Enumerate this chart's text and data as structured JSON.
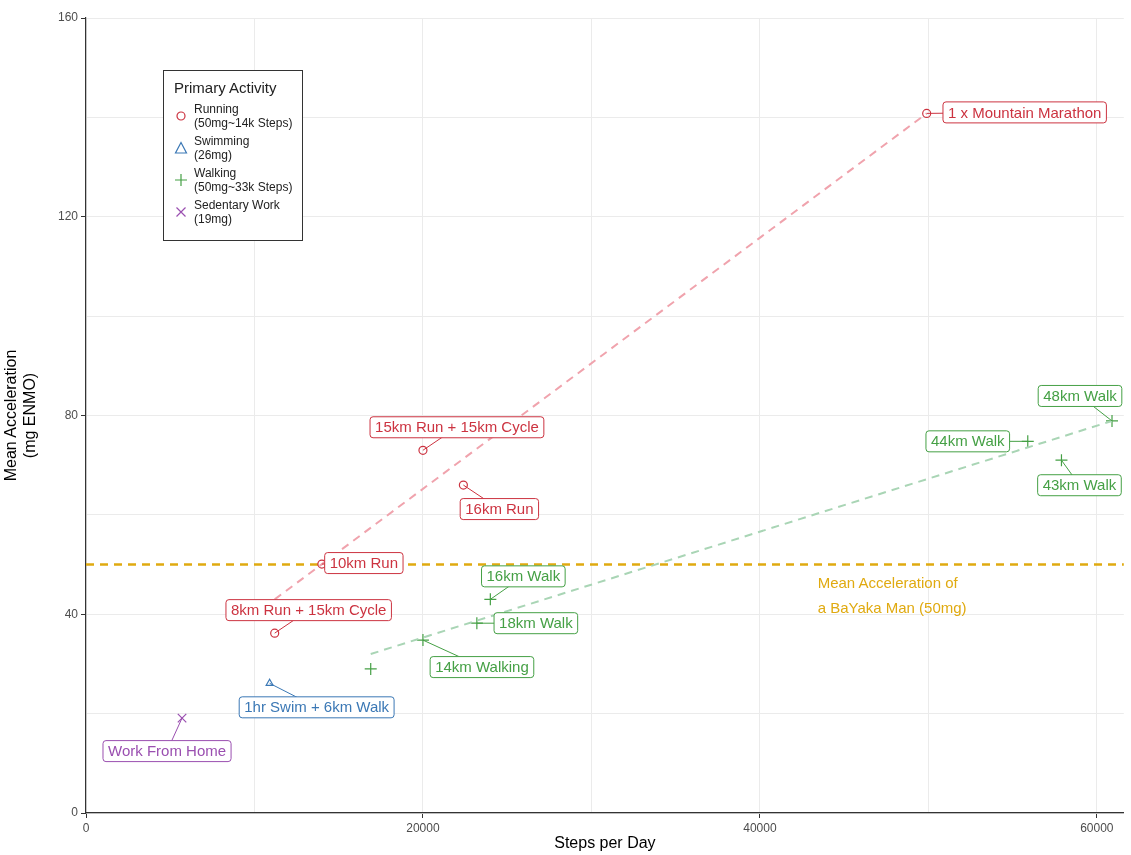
{
  "chart_data": {
    "type": "scatter",
    "xlabel": "Steps per Day",
    "ylabel": "Mean Acceleration\n(mg ENMO)",
    "legend_title": "Primary Activity",
    "legend": "top left",
    "grid": true,
    "xlim": [
      0,
      61600
    ],
    "xticks": [
      0,
      {
        "value": 10000,
        "label": null
      },
      20000,
      {
        "value": 30000,
        "label": null
      },
      40000,
      {
        "value": 50000,
        "label": null
      },
      60000
    ],
    "ylim": [
      0,
      160
    ],
    "yticks": [
      0,
      {
        "value": 20,
        "label": null
      },
      40,
      {
        "value": 60,
        "label": null
      },
      80,
      {
        "value": 100,
        "label": null
      },
      120,
      {
        "value": 140,
        "label": null
      },
      160
    ],
    "series": [
      {
        "type": "line",
        "color": "#f0a3ad",
        "line_style": "dashed",
        "marker": "none",
        "x": [
          11200,
          49900
        ],
        "values": [
          43,
          140.8
        ]
      },
      {
        "type": "line",
        "color": "#a9d5b5",
        "line_style": "dashed",
        "marker": "none",
        "x": [
          16900,
          60900
        ],
        "values": [
          32,
          78.9
        ]
      },
      {
        "name": "Running\n(50mg~14k Steps)",
        "color": "#cc3340",
        "marker": "circle",
        "x": [
          11200,
          14000,
          20000,
          22400,
          49900
        ],
        "values": [
          36.2,
          50.1,
          73,
          66,
          140.8
        ]
      },
      {
        "name": "Swimming\n(26mg)",
        "color": "#3b78b5",
        "marker": "triangle",
        "x": [
          10900
        ],
        "values": [
          26.1
        ]
      },
      {
        "name": "Walking\n(50mg~33k Steps)",
        "color": "#45a045",
        "marker": "cross",
        "x": [
          16900,
          20000,
          23200,
          24000,
          55900,
          57900,
          60900
        ],
        "values": [
          29,
          34.8,
          38.2,
          43,
          74.8,
          71,
          78.9
        ]
      },
      {
        "name": "Sedentary Work\n(19mg)",
        "color": "#9a4fb0",
        "marker": "x",
        "x": [
          5700
        ],
        "values": [
          19.1
        ]
      }
    ],
    "ref_lines": [
      {
        "axis": "y",
        "value": 50,
        "label": "Mean Acceleration of\na BaYaka Man (50mg)",
        "color": "#e0aa10",
        "line_style": "dashed"
      }
    ],
    "annotations": [
      {
        "text": "8km Run + 15km Cycle",
        "x": 11200,
        "y": 36.2
      },
      {
        "text": "10km Run",
        "x": 14000,
        "y": 50.1
      },
      {
        "text": "15km Run + 15km Cycle",
        "x": 20000,
        "y": 73
      },
      {
        "text": "16km Run",
        "x": 22400,
        "y": 66
      },
      {
        "text": "1 x Mountain Marathon",
        "x": 49900,
        "y": 140.8
      },
      {
        "text": "1hr Swim + 6km Walk",
        "x": 10900,
        "y": 26.1
      },
      {
        "text": "14km Walking",
        "x": 20000,
        "y": 34.8
      },
      {
        "text": "18km Walk",
        "x": 23200,
        "y": 38.2
      },
      {
        "text": "16km Walk",
        "x": 24000,
        "y": 43
      },
      {
        "text": "44km Walk",
        "x": 55900,
        "y": 74.8
      },
      {
        "text": "43km Walk",
        "x": 57900,
        "y": 71
      },
      {
        "text": "48km Walk",
        "x": 60900,
        "y": 78.9
      },
      {
        "text": "Work From Home",
        "x": 5700,
        "y": 19.1
      }
    ]
  }
}
